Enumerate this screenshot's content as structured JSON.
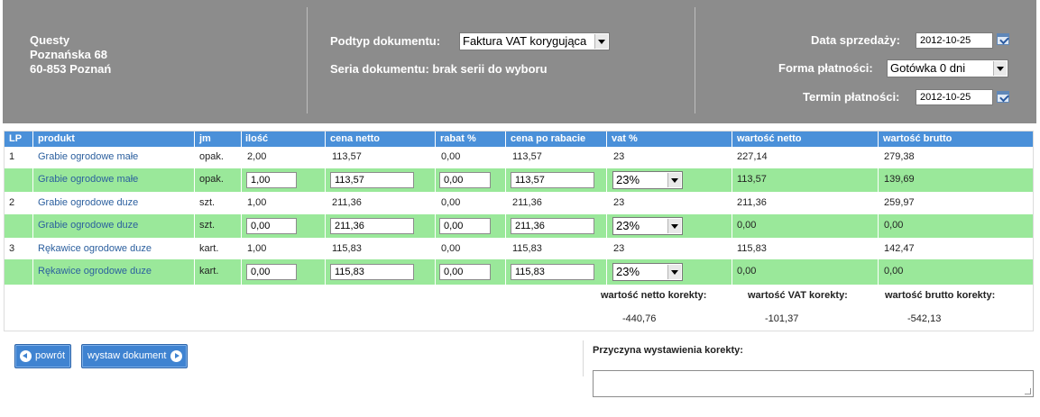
{
  "header": {
    "company_name": "Questy",
    "company_street": "Poznańska 68",
    "company_city": "60-853 Poznań",
    "subtype_label": "Podtyp dokumentu:",
    "subtype_value": "Faktura VAT korygująca",
    "series_label": "Seria dokumentu: brak serii do wyboru",
    "sale_date_label": "Data sprzedaży:",
    "sale_date_value": "2012-10-25",
    "payment_form_label": "Forma płatności:",
    "payment_form_value": "Gotówka 0 dni",
    "payment_due_label": "Termin płatności:",
    "payment_due_value": "2012-10-25"
  },
  "table": {
    "columns": [
      "LP",
      "produkt",
      "jm",
      "ilość",
      "cena netto",
      "rabat %",
      "cena po rabacie",
      "vat %",
      "wartość netto",
      "wartość brutto"
    ],
    "items": [
      {
        "orig": {
          "lp": "1",
          "product": "Grabie ogrodowe małe",
          "unit": "opak.",
          "qty": "2,00",
          "net": "113,57",
          "discount": "0,00",
          "after": "113,57",
          "vat": "23",
          "net_total": "227,14",
          "gross_total": "279,38"
        },
        "corr": {
          "product": "Grabie ogrodowe małe",
          "unit": "opak.",
          "qty": "1,00",
          "net": "113,57",
          "discount": "0,00",
          "after": "113,57",
          "vat": "23%",
          "net_total": "113,57",
          "gross_total": "139,69"
        }
      },
      {
        "orig": {
          "lp": "2",
          "product": "Grabie ogrodowe duze",
          "unit": "szt.",
          "qty": "1,00",
          "net": "211,36",
          "discount": "0,00",
          "after": "211,36",
          "vat": "23",
          "net_total": "211,36",
          "gross_total": "259,97"
        },
        "corr": {
          "product": "Grabie ogrodowe duze",
          "unit": "szt.",
          "qty": "0,00",
          "net": "211,36",
          "discount": "0,00",
          "after": "211,36",
          "vat": "23%",
          "net_total": "0,00",
          "gross_total": "0,00"
        }
      },
      {
        "orig": {
          "lp": "3",
          "product": "Rękawice ogrodowe duze",
          "unit": "kart.",
          "qty": "1,00",
          "net": "115,83",
          "discount": "0,00",
          "after": "115,83",
          "vat": "23",
          "net_total": "115,83",
          "gross_total": "142,47"
        },
        "corr": {
          "product": "Rękawice ogrodowe duze",
          "unit": "kart.",
          "qty": "0,00",
          "net": "115,83",
          "discount": "0,00",
          "after": "115,83",
          "vat": "23%",
          "net_total": "0,00",
          "gross_total": "0,00"
        }
      }
    ]
  },
  "summary": {
    "net_label": "wartość netto korekty:",
    "net_value": "-440,76",
    "vat_label": "wartość VAT korekty:",
    "vat_value": "-101,37",
    "gross_label": "wartość brutto korekty:",
    "gross_value": "-542,13"
  },
  "footer": {
    "back_label": "powrót",
    "issue_label": "wystaw dokument",
    "reason_label": "Przyczyna wystawienia korekty:",
    "reason_value": ""
  },
  "colors": {
    "header_bg": "#8c8c8c",
    "table_header": "#4a90d9",
    "correction_row": "#9ae89a",
    "button": "#3f83d1"
  }
}
